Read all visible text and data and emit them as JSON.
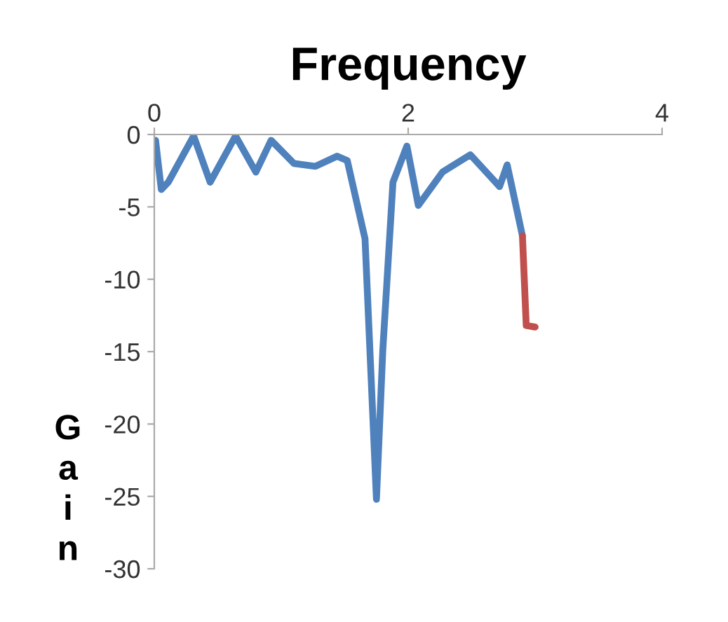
{
  "chart_data": {
    "type": "line",
    "title": "Frequency",
    "ylabel": "Gain",
    "series": [
      {
        "color": "#4f81bd",
        "x": [
          0.01,
          0.055,
          0.11,
          0.31,
          0.44,
          0.64,
          0.8,
          0.92,
          1.1,
          1.27,
          1.44,
          1.52,
          1.66,
          1.75,
          1.8,
          1.88,
          1.99,
          2.08,
          2.27,
          2.49,
          2.72,
          2.78,
          2.9
        ],
        "values": [
          -0.4,
          -3.8,
          -3.3,
          -0.1,
          -3.3,
          -0.1,
          -2.6,
          -0.4,
          -2.0,
          -2.2,
          -1.5,
          -1.8,
          -7.2,
          -25.2,
          -14.9,
          -3.3,
          -0.8,
          -4.9,
          -2.6,
          -1.4,
          -3.6,
          -2.1,
          -7.0
        ]
      },
      {
        "color": "#c0504d",
        "x": [
          2.9,
          2.93,
          3.0
        ],
        "values": [
          -7.0,
          -13.2,
          -13.3
        ]
      }
    ],
    "xlim": [
      0,
      4
    ],
    "xticks": [
      0,
      2,
      4
    ],
    "ylim": [
      -30,
      0
    ],
    "yticks": [
      -30,
      -25,
      -20,
      -15,
      -10,
      -5,
      0
    ],
    "grid": false,
    "marker": "none",
    "line_style": "solid"
  }
}
